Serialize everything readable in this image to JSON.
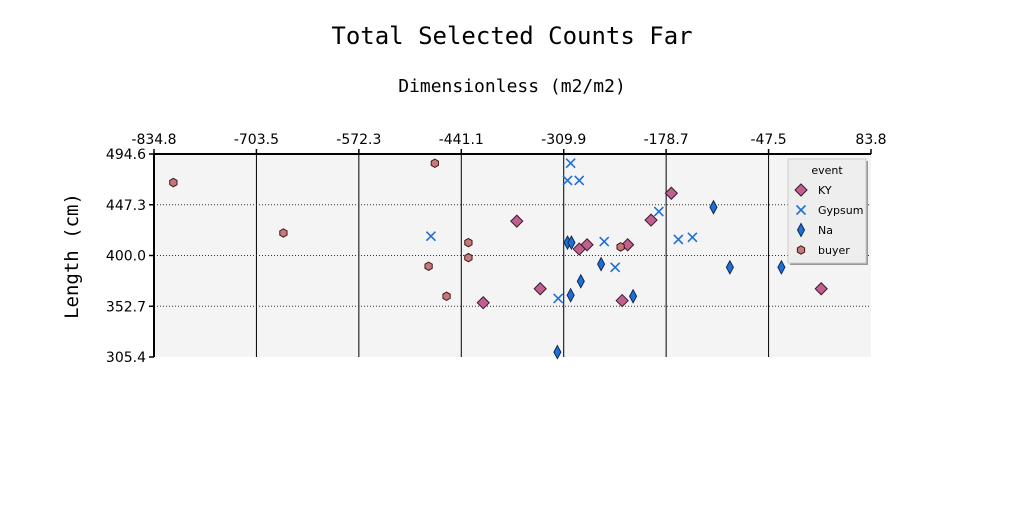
{
  "chart_data": {
    "type": "scatter",
    "title": "Total Selected Counts Far",
    "subtitle": "Dimensionless (m2/m2)",
    "xlabel": "",
    "ylabel": "Length (cm)",
    "xlim": [
      -834.8,
      83.8
    ],
    "ylim": [
      305.4,
      494.6
    ],
    "xticks": [
      "-834.8",
      "-703.5",
      "-572.3",
      "-441.1",
      "-309.9",
      "-178.7",
      "-47.5",
      "83.8"
    ],
    "yticks": [
      "494.6",
      "447.3",
      "400.0",
      "352.7",
      "305.4"
    ],
    "x_axis_position": "top",
    "grid": {
      "x": "solid",
      "y": "dotted"
    },
    "legend": {
      "title": "event",
      "placement": "top-right"
    },
    "colors": {
      "KY": "#c06090",
      "Gypsum": "#1f6fd6",
      "Na": "#1f6fd6",
      "buyer": "#c87878",
      "plot_bg": "#f4f4f4"
    },
    "series": [
      {
        "name": "KY",
        "marker": "diamond-large",
        "points": [
          [
            -370,
            432
          ],
          [
            -340,
            369
          ],
          [
            -290,
            406
          ],
          [
            -280,
            410
          ],
          [
            -235,
            358
          ],
          [
            -228,
            410
          ],
          [
            -198,
            433
          ],
          [
            -172,
            458
          ],
          [
            -413,
            356
          ],
          [
            20,
            369
          ]
        ]
      },
      {
        "name": "Gypsum",
        "marker": "x",
        "points": [
          [
            -305,
            470
          ],
          [
            -480,
            418
          ],
          [
            -290,
            470
          ],
          [
            -258,
            413
          ],
          [
            -188,
            441
          ],
          [
            -163,
            415
          ],
          [
            -145,
            417
          ],
          [
            -244,
            389
          ],
          [
            -317,
            360
          ],
          [
            -301,
            486
          ]
        ]
      },
      {
        "name": "Na",
        "marker": "diamond-thin",
        "points": [
          [
            -305,
            412
          ],
          [
            -318,
            310
          ],
          [
            -301,
            363
          ],
          [
            -288,
            376
          ],
          [
            -300,
            412
          ],
          [
            -262,
            392
          ],
          [
            -221,
            362
          ],
          [
            -118,
            445
          ],
          [
            -97,
            389
          ],
          [
            -31,
            389
          ]
        ]
      },
      {
        "name": "buyer",
        "marker": "hexagon",
        "points": [
          [
            -810,
            468
          ],
          [
            -669,
            421
          ],
          [
            -475,
            486
          ],
          [
            -483,
            390
          ],
          [
            -460,
            362
          ],
          [
            -432,
            412
          ],
          [
            -432,
            398
          ],
          [
            -237,
            408
          ]
        ]
      }
    ]
  }
}
